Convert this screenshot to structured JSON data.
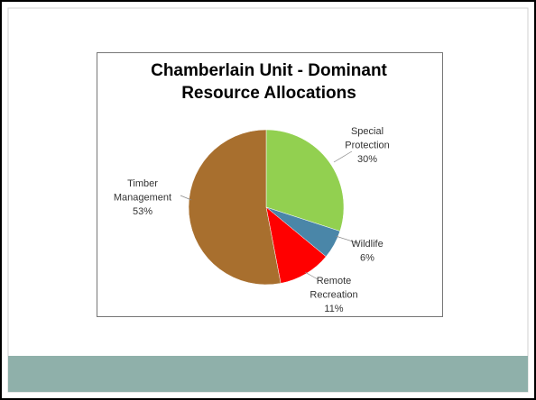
{
  "chart_data": {
    "type": "pie",
    "title": "Chamberlain Unit - Dominant Resource Allocations",
    "categories": [
      "Special Protection",
      "Wildlife",
      "Remote Recreation",
      "Timber Management"
    ],
    "values": [
      30,
      6,
      11,
      53
    ],
    "value_labels": [
      "30%",
      "6%",
      "11%",
      "53%"
    ],
    "colors": [
      "#92d050",
      "#4a86a8",
      "#ff0000",
      "#a86f2e"
    ]
  }
}
